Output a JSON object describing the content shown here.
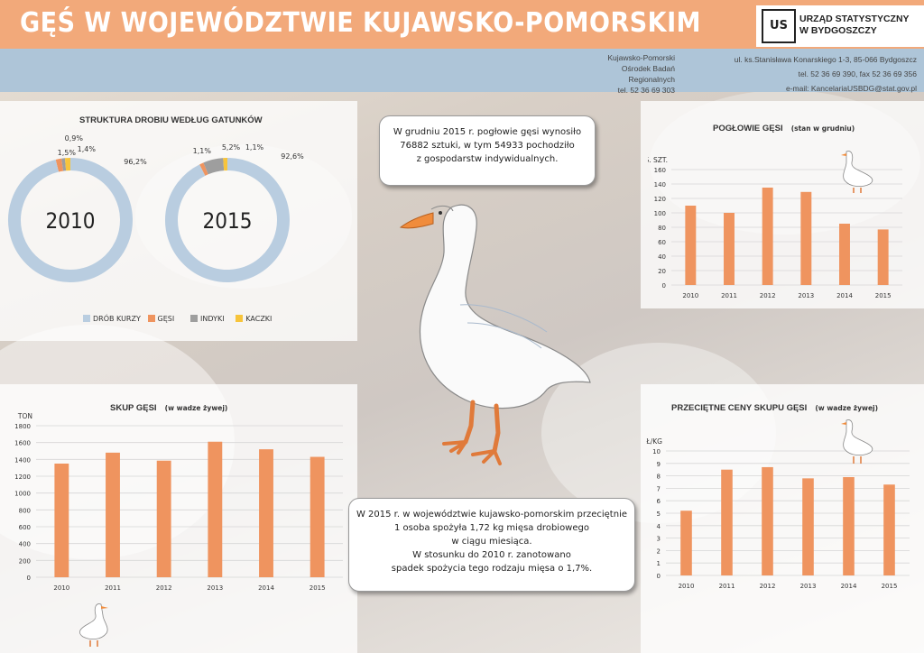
{
  "header": {
    "title": "GĘŚ W WOJEWÓDZTWIE KUJAWSKO-POMORSKIM",
    "logo_mark": "US",
    "org_line1": "URZĄD STATYSTYCZNY",
    "org_line2": "W BYDGOSZCZY"
  },
  "contact": {
    "center_line1": "Kujawsko-Pomorski",
    "center_line2": "Ośrodek Badań",
    "center_line3": "Regionalnych",
    "center_line4": "tel. 52 36 69 303",
    "right_line1": "ul. ks.Stanisława Konarskiego 1-3, 85-066 Bydgoszcz",
    "right_line2": "tel. 52 36 69 390, fax 52 36 69 356",
    "right_line3": "e-mail: KancelariaUSBDG@stat.gov.pl"
  },
  "callouts": {
    "top_line1": "W grudniu 2015 r. pogłowie gęsi wynosiło",
    "top_line2": "76882 sztuki, w tym 54933 pochodziło",
    "top_line3": "z gospodarstw indywidualnych.",
    "bottom_line1": "W 2015 r. w województwie kujawsko-pomorskim przeciętnie",
    "bottom_line2": "1 osoba spożyła 1,72 kg mięsa drobiowego",
    "bottom_line3": "w ciągu miesiąca.",
    "bottom_line4": "W stosunku do 2010 r. zanotowano",
    "bottom_line5": "spadek spożycia tego rodzaju mięsa o 1,7%."
  },
  "colors": {
    "orange": "#ef945f",
    "blue": "#b9cde0",
    "gray": "#9e9e9e",
    "yellow": "#f7c43b",
    "header_bg": "#f2a97a",
    "info_bg": "#aec5d8"
  },
  "chart_data": [
    {
      "type": "pie",
      "title": "STRUKTURA DROBIU WEDŁUG GATUNKÓW",
      "center_label": "2010",
      "categories": [
        "DRÓB KURZY",
        "GĘSI",
        "INDYKI",
        "KACZKI"
      ],
      "values": [
        96.2,
        1.5,
        0.9,
        1.4
      ],
      "value_labels": [
        "96,2%",
        "1,5%",
        "0,9%",
        "1,4%"
      ],
      "legend_position": "bottom"
    },
    {
      "type": "pie",
      "center_label": "2015",
      "categories": [
        "DRÓB KURZY",
        "GĘSI",
        "INDYKI",
        "KACZKI"
      ],
      "values": [
        92.6,
        1.1,
        5.2,
        1.1
      ],
      "value_labels": [
        "92,6%",
        "1,1%",
        "5,2%",
        "1,1%"
      ],
      "legend_position": "bottom"
    },
    {
      "type": "bar",
      "title": "POGŁOWIE GĘSI",
      "subtitle": "(stan w grudniu)",
      "ylabel": "TYS. SZT.",
      "categories": [
        "2010",
        "2011",
        "2012",
        "2013",
        "2014",
        "2015"
      ],
      "values": [
        110,
        100,
        135,
        129,
        85,
        77
      ],
      "ylim": [
        0,
        160
      ],
      "yticks": [
        0,
        20,
        40,
        60,
        80,
        100,
        120,
        140,
        160
      ],
      "grid": true
    },
    {
      "type": "bar",
      "title": "SKUP GĘSI",
      "subtitle": "(w wadze żywej)",
      "ylabel": "TON",
      "categories": [
        "2010",
        "2011",
        "2012",
        "2013",
        "2014",
        "2015"
      ],
      "values": [
        1350,
        1480,
        1385,
        1610,
        1520,
        1430
      ],
      "ylim": [
        0,
        1800
      ],
      "yticks": [
        0,
        200,
        400,
        600,
        800,
        1000,
        1200,
        1400,
        1600,
        1800
      ],
      "grid": true
    },
    {
      "type": "bar",
      "title": "PRZECIĘTNE CENY SKUPU GĘSI",
      "subtitle": "(w wadze żywej)",
      "ylabel": "ZŁ/KG",
      "categories": [
        "2010",
        "2011",
        "2012",
        "2013",
        "2014",
        "2015"
      ],
      "values": [
        5.2,
        8.5,
        8.7,
        7.8,
        7.9,
        7.3
      ],
      "ylim": [
        0,
        10
      ],
      "yticks": [
        0,
        1,
        2,
        3,
        4,
        5,
        6,
        7,
        8,
        9,
        10
      ],
      "grid": true
    }
  ]
}
